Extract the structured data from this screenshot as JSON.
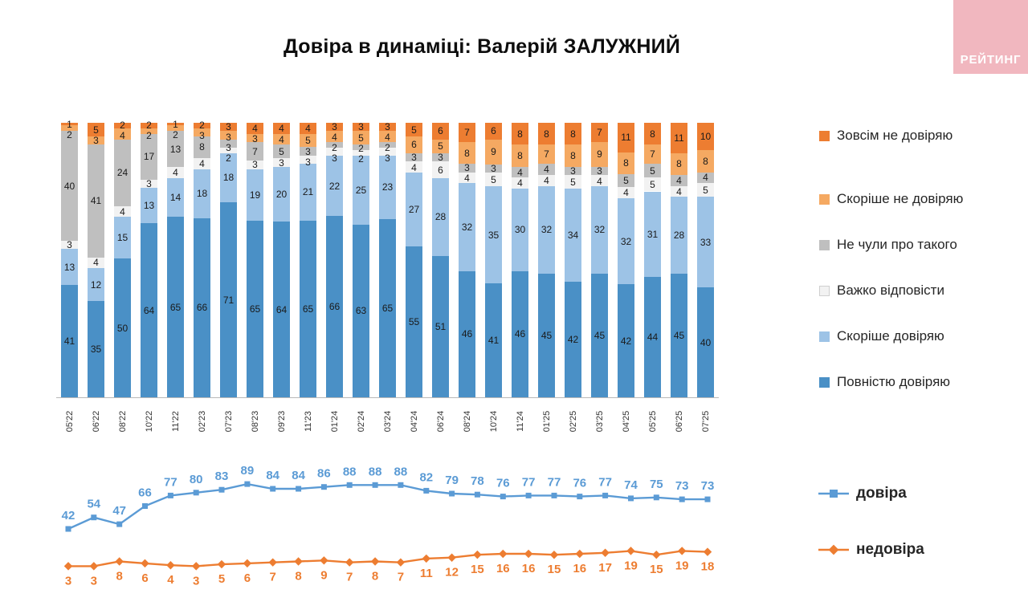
{
  "title": "Довіра в динаміці: Валерій ЗАЛУЖНИЙ",
  "logo": {
    "text": "РЕЙТИНГ",
    "background": "#f1b7bf",
    "text_color": "#ffffff"
  },
  "chart_data": [
    {
      "type": "bar",
      "stacked": true,
      "unit": "percent",
      "series_order": "bottom-to-top",
      "legend_position": "right",
      "grid": false,
      "categories": [
        "05'22",
        "06'22",
        "08'22",
        "10'22",
        "11'22",
        "02'23",
        "07'23",
        "08'23",
        "09'23",
        "11'23",
        "01'24",
        "02'24",
        "03'24",
        "04'24",
        "06'24",
        "08'24",
        "10'24",
        "11'24",
        "01'25",
        "02'25",
        "03'25",
        "04'25",
        "05'25",
        "06'25",
        "07'25"
      ],
      "series": [
        {
          "name": "Повністю довіряю",
          "color": "#4a90c6",
          "values": [
            41,
            35,
            50,
            64,
            65,
            66,
            71,
            65,
            64,
            65,
            66,
            63,
            65,
            55,
            51,
            46,
            41,
            46,
            45,
            42,
            45,
            42,
            44,
            45,
            40
          ]
        },
        {
          "name": "Скоріше довіряю",
          "color": "#9dc3e6",
          "values": [
            13,
            12,
            15,
            13,
            14,
            18,
            18,
            19,
            20,
            21,
            22,
            25,
            23,
            27,
            28,
            32,
            35,
            30,
            32,
            34,
            32,
            32,
            31,
            28,
            33
          ]
        },
        {
          "name": "Важко відповісти",
          "color": "#f2f2f2",
          "values": [
            3,
            4,
            4,
            3,
            4,
            4,
            2,
            3,
            3,
            3,
            3,
            2,
            3,
            4,
            6,
            4,
            5,
            4,
            4,
            5,
            4,
            4,
            5,
            4,
            5
          ]
        },
        {
          "name": "Не чули про такого",
          "color": "#bfbfbf",
          "values": [
            40,
            41,
            24,
            17,
            13,
            8,
            3,
            7,
            5,
            3,
            2,
            2,
            2,
            3,
            3,
            3,
            3,
            4,
            4,
            3,
            3,
            5,
            5,
            4,
            4
          ]
        },
        {
          "name": "Скоріше не довіряю",
          "color": "#f5a962",
          "values": [
            2,
            3,
            4,
            2,
            2,
            3,
            3,
            3,
            4,
            5,
            4,
            5,
            4,
            6,
            5,
            8,
            9,
            8,
            7,
            8,
            9,
            8,
            7,
            8,
            8
          ]
        },
        {
          "name": "Зовсім не довіряю",
          "color": "#ed7d31",
          "values": [
            1,
            5,
            2,
            2,
            1,
            2,
            3,
            4,
            4,
            4,
            3,
            3,
            3,
            5,
            6,
            7,
            6,
            8,
            8,
            8,
            7,
            11,
            8,
            11,
            10
          ]
        }
      ]
    },
    {
      "type": "line",
      "legend_position": "right",
      "grid": false,
      "series": [
        {
          "name": "довіра",
          "color": "#5b9bd5",
          "marker": "square",
          "label_position": "above",
          "values": [
            42,
            54,
            47,
            66,
            77,
            80,
            83,
            89,
            84,
            84,
            86,
            88,
            88,
            88,
            82,
            79,
            78,
            76,
            77,
            77,
            76,
            77,
            74,
            75,
            73,
            73
          ]
        },
        {
          "name": "недовіра",
          "color": "#ed7d31",
          "marker": "diamond",
          "label_position": "below",
          "values": [
            3,
            3,
            8,
            6,
            4,
            3,
            5,
            6,
            7,
            8,
            9,
            7,
            8,
            7,
            11,
            12,
            15,
            16,
            16,
            15,
            16,
            17,
            19,
            15,
            19,
            18
          ]
        }
      ]
    }
  ]
}
